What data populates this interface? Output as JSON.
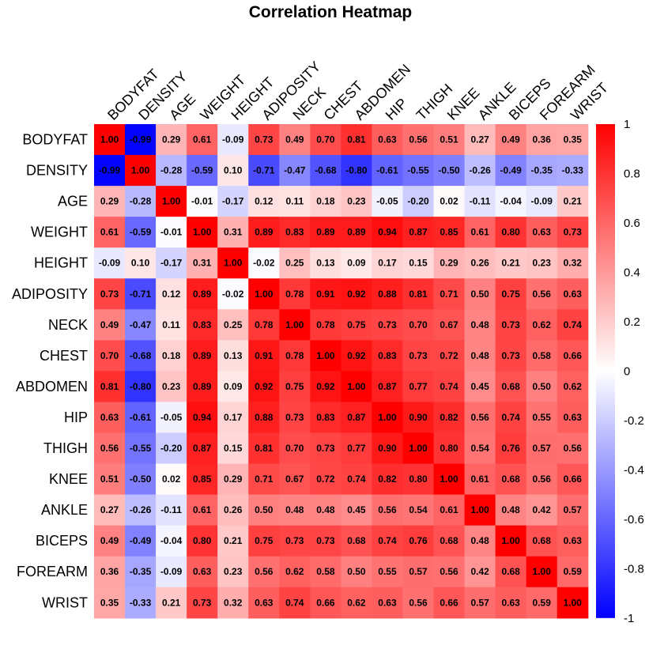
{
  "chart_data": {
    "type": "heatmap",
    "title": "Correlation Heatmap",
    "variables": [
      "BODYFAT",
      "DENSITY",
      "AGE",
      "WEIGHT",
      "HEIGHT",
      "ADIPOSITY",
      "NECK",
      "CHEST",
      "ABDOMEN",
      "HIP",
      "THIGH",
      "KNEE",
      "ANKLE",
      "BICEPS",
      "FOREARM",
      "WRIST"
    ],
    "matrix": [
      [
        1.0,
        -0.99,
        0.29,
        0.61,
        -0.09,
        0.73,
        0.49,
        0.7,
        0.81,
        0.63,
        0.56,
        0.51,
        0.27,
        0.49,
        0.36,
        0.35
      ],
      [
        -0.99,
        1.0,
        -0.28,
        -0.59,
        0.1,
        -0.71,
        -0.47,
        -0.68,
        -0.8,
        -0.61,
        -0.55,
        -0.5,
        -0.26,
        -0.49,
        -0.35,
        -0.33
      ],
      [
        0.29,
        -0.28,
        1.0,
        -0.01,
        -0.17,
        0.12,
        0.11,
        0.18,
        0.23,
        -0.05,
        -0.2,
        0.02,
        -0.11,
        -0.04,
        -0.09,
        0.21
      ],
      [
        0.61,
        -0.59,
        -0.01,
        1.0,
        0.31,
        0.89,
        0.83,
        0.89,
        0.89,
        0.94,
        0.87,
        0.85,
        0.61,
        0.8,
        0.63,
        0.73
      ],
      [
        -0.09,
        0.1,
        -0.17,
        0.31,
        1.0,
        -0.02,
        0.25,
        0.13,
        0.09,
        0.17,
        0.15,
        0.29,
        0.26,
        0.21,
        0.23,
        0.32
      ],
      [
        0.73,
        -0.71,
        0.12,
        0.89,
        -0.02,
        1.0,
        0.78,
        0.91,
        0.92,
        0.88,
        0.81,
        0.71,
        0.5,
        0.75,
        0.56,
        0.63
      ],
      [
        0.49,
        -0.47,
        0.11,
        0.83,
        0.25,
        0.78,
        1.0,
        0.78,
        0.75,
        0.73,
        0.7,
        0.67,
        0.48,
        0.73,
        0.62,
        0.74
      ],
      [
        0.7,
        -0.68,
        0.18,
        0.89,
        0.13,
        0.91,
        0.78,
        1.0,
        0.92,
        0.83,
        0.73,
        0.72,
        0.48,
        0.73,
        0.58,
        0.66
      ],
      [
        0.81,
        -0.8,
        0.23,
        0.89,
        0.09,
        0.92,
        0.75,
        0.92,
        1.0,
        0.87,
        0.77,
        0.74,
        0.45,
        0.68,
        0.5,
        0.62
      ],
      [
        0.63,
        -0.61,
        -0.05,
        0.94,
        0.17,
        0.88,
        0.73,
        0.83,
        0.87,
        1.0,
        0.9,
        0.82,
        0.56,
        0.74,
        0.55,
        0.63
      ],
      [
        0.56,
        -0.55,
        -0.2,
        0.87,
        0.15,
        0.81,
        0.7,
        0.73,
        0.77,
        0.9,
        1.0,
        0.8,
        0.54,
        0.76,
        0.57,
        0.56
      ],
      [
        0.51,
        -0.5,
        0.02,
        0.85,
        0.29,
        0.71,
        0.67,
        0.72,
        0.74,
        0.82,
        0.8,
        1.0,
        0.61,
        0.68,
        0.56,
        0.66
      ],
      [
        0.27,
        -0.26,
        -0.11,
        0.61,
        0.26,
        0.5,
        0.48,
        0.48,
        0.45,
        0.56,
        0.54,
        0.61,
        1.0,
        0.48,
        0.42,
        0.57
      ],
      [
        0.49,
        -0.49,
        -0.04,
        0.8,
        0.21,
        0.75,
        0.73,
        0.73,
        0.68,
        0.74,
        0.76,
        0.68,
        0.48,
        1.0,
        0.68,
        0.63
      ],
      [
        0.36,
        -0.35,
        -0.09,
        0.63,
        0.23,
        0.56,
        0.62,
        0.58,
        0.5,
        0.55,
        0.57,
        0.56,
        0.42,
        0.68,
        1.0,
        0.59
      ],
      [
        0.35,
        -0.33,
        0.21,
        0.73,
        0.32,
        0.63,
        0.74,
        0.66,
        0.62,
        0.63,
        0.56,
        0.66,
        0.57,
        0.63,
        0.59,
        1.0
      ]
    ],
    "colorbar": {
      "range": [
        -1,
        1
      ],
      "ticks": [
        "1",
        "0.8",
        "0.6",
        "0.4",
        "0.2",
        "0",
        "-0.2",
        "-0.4",
        "-0.6",
        "-0.8",
        "-1"
      ],
      "colors": {
        "low": "#0000ff",
        "mid": "#ffffff",
        "high": "#ff0000"
      }
    }
  }
}
